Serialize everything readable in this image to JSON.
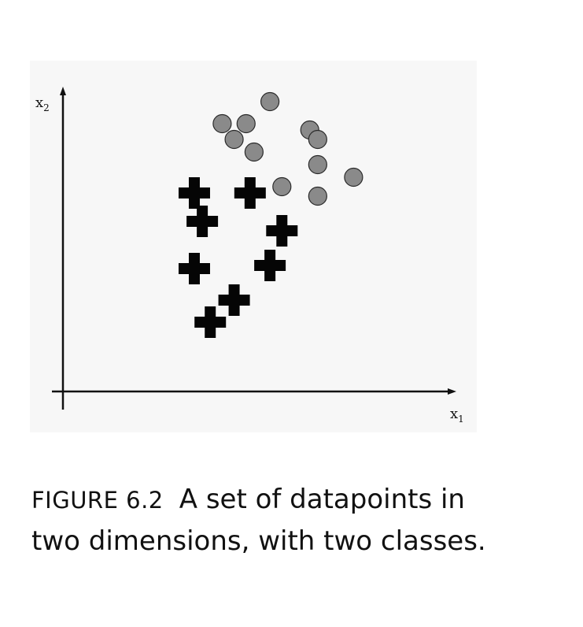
{
  "figure": {
    "caption_label": "FIGURE 6.2",
    "caption_line1": "A set of datapoints in",
    "caption_line2": "two dimensions, with two classes."
  },
  "chart_data": {
    "type": "scatter",
    "title": "",
    "xlabel": "x",
    "xlabel_sub": "1",
    "ylabel": "x",
    "ylabel_sub": "2",
    "grid": false,
    "legend": "none",
    "xlim": [
      0,
      100
    ],
    "ylim": [
      0,
      100
    ],
    "series": [
      {
        "marker": "circle",
        "color": "#8a8a8a",
        "points": [
          {
            "x": 52,
            "y": 92
          },
          {
            "x": 40,
            "y": 85
          },
          {
            "x": 46,
            "y": 85
          },
          {
            "x": 43,
            "y": 80
          },
          {
            "x": 48,
            "y": 76
          },
          {
            "x": 62,
            "y": 83
          },
          {
            "x": 64,
            "y": 80
          },
          {
            "x": 64,
            "y": 72
          },
          {
            "x": 73,
            "y": 68
          },
          {
            "x": 55,
            "y": 65
          },
          {
            "x": 64,
            "y": 62
          }
        ]
      },
      {
        "marker": "cross",
        "color": "#050505",
        "points": [
          {
            "x": 33,
            "y": 63
          },
          {
            "x": 47,
            "y": 63
          },
          {
            "x": 35,
            "y": 54
          },
          {
            "x": 55,
            "y": 51
          },
          {
            "x": 33,
            "y": 39
          },
          {
            "x": 52,
            "y": 40
          },
          {
            "x": 43,
            "y": 29
          },
          {
            "x": 37,
            "y": 22
          }
        ]
      }
    ]
  }
}
